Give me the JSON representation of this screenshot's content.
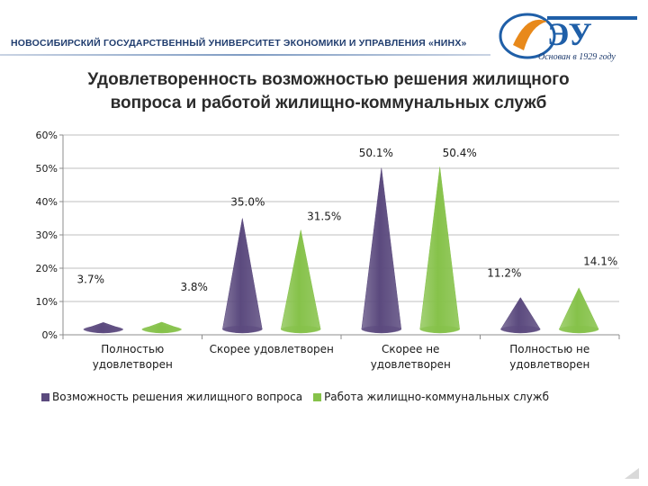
{
  "header": {
    "university": "НОВОСИБИРСКИЙ ГОСУДАРСТВЕННЫЙ УНИВЕРСИТЕТ ЭКОНОМИКИ И УПРАВЛЕНИЯ «НИНХ»",
    "logo_tagline": "Основан в 1929 году"
  },
  "colors": {
    "series1": "#5b4a7e",
    "series2": "#86c24a",
    "logo_blue": "#1f5fa8",
    "logo_orange": "#e8891b"
  },
  "chart_data": {
    "type": "bar",
    "bar_shape": "cone",
    "title": [
      "Удовлетворенность возможностью решения жилищного",
      "вопроса и работой жилищно-коммунальных служб"
    ],
    "categories": [
      [
        "Полностью",
        "удовлетворен"
      ],
      [
        "Скорее удовлетворен"
      ],
      [
        "Скорее не",
        "удовлетворен"
      ],
      [
        "Полностью не",
        "удовлетворен"
      ]
    ],
    "series": [
      {
        "name": "Возможность решения жилищного вопроса",
        "values": [
          3.7,
          35.0,
          50.1,
          11.2
        ],
        "labels": [
          "3.7%",
          "35.0%",
          "50.1%",
          "11.2%"
        ]
      },
      {
        "name": "Работа жилищно-коммунальных служб",
        "values": [
          3.8,
          31.5,
          50.4,
          14.1
        ],
        "labels": [
          "3.8%",
          "31.5%",
          "50.4%",
          "14.1%"
        ]
      }
    ],
    "ylim": [
      0,
      60
    ],
    "yticks": [
      "0%",
      "10%",
      "20%",
      "30%",
      "40%",
      "50%",
      "60%"
    ],
    "ytick_values": [
      0,
      10,
      20,
      30,
      40,
      50,
      60
    ],
    "grid": true,
    "legend_position": "bottom"
  }
}
